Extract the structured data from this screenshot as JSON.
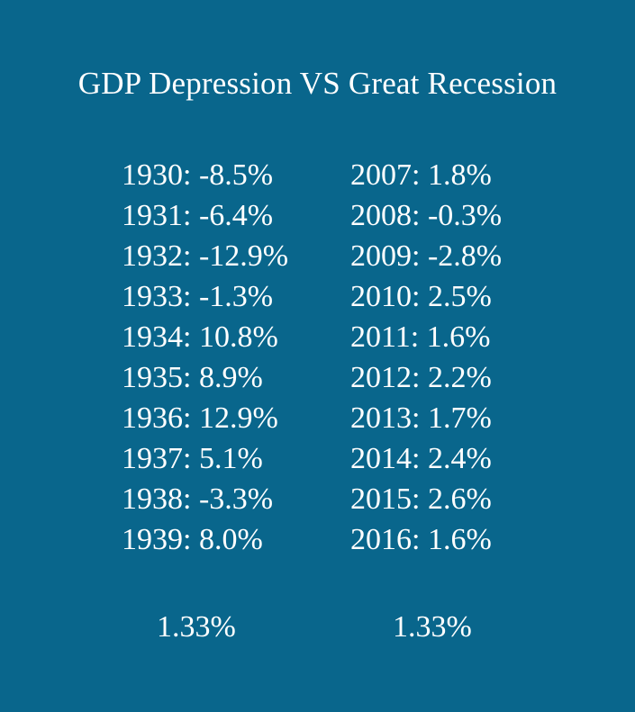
{
  "title": "GDP Depression VS Great Recession",
  "colors": {
    "background": "#09668c",
    "text": "#ffffff"
  },
  "depression": {
    "rows": [
      "1930: -8.5%",
      "1931: -6.4%",
      "1932: -12.9%",
      "1933: -1.3%",
      "1934: 10.8%",
      "1935: 8.9%",
      "1936: 12.9%",
      "1937: 5.1%",
      "1938: -3.3%",
      "1939: 8.0%"
    ],
    "average": "1.33%"
  },
  "recession": {
    "rows": [
      "2007: 1.8%",
      "2008: -0.3%",
      "2009: -2.8%",
      "2010: 2.5%",
      "2011: 1.6%",
      "2012: 2.2%",
      "2013: 1.7%",
      "2014: 2.4%",
      "2015: 2.6%",
      "2016: 1.6%"
    ],
    "average": "1.33%"
  }
}
